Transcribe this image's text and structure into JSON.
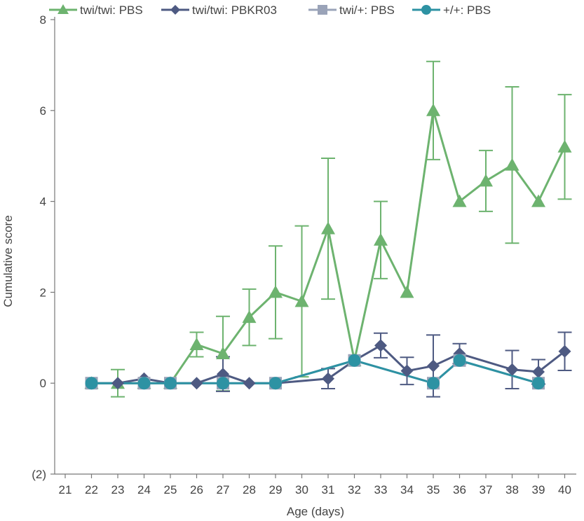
{
  "chart_data": {
    "type": "line",
    "xlabel": "Age (days)",
    "ylabel": "Cumulative score",
    "xlim": [
      21,
      40
    ],
    "ylim": [
      -2,
      8
    ],
    "x_ticks": [
      "21",
      "22",
      "23",
      "24",
      "25",
      "26",
      "27",
      "28",
      "29",
      "30",
      "31",
      "32",
      "33",
      "34",
      "35",
      "36",
      "37",
      "38",
      "39",
      "40"
    ],
    "y_ticks": [
      {
        "value": -2,
        "label": "(2)"
      },
      {
        "value": 0,
        "label": "0"
      },
      {
        "value": 2,
        "label": "2"
      },
      {
        "value": 4,
        "label": "4"
      },
      {
        "value": 6,
        "label": "6"
      },
      {
        "value": 8,
        "label": "8"
      }
    ],
    "grid": false,
    "legend_position": "top",
    "series": [
      {
        "name": "twi/twi: PBS",
        "color": "#6db36f",
        "marker": "triangle",
        "points": [
          {
            "x": 22,
            "y": 0
          },
          {
            "x": 23,
            "y": 0,
            "err": 0.3
          },
          {
            "x": 24,
            "y": 0
          },
          {
            "x": 25,
            "y": 0
          },
          {
            "x": 26,
            "y": 0.85,
            "err": 0.27
          },
          {
            "x": 27,
            "y": 0.65,
            "err": 0.82
          },
          {
            "x": 28,
            "y": 1.45,
            "err": 0.62
          },
          {
            "x": 29,
            "y": 2.0,
            "err": 1.02
          },
          {
            "x": 30,
            "y": 1.8,
            "err": 1.66
          },
          {
            "x": 31,
            "y": 3.4,
            "err": 1.55
          },
          {
            "x": 32,
            "y": 0.5
          },
          {
            "x": 33,
            "y": 3.15,
            "err": 0.85
          },
          {
            "x": 34,
            "y": 2.0
          },
          {
            "x": 35,
            "y": 6.0,
            "err": 1.08
          },
          {
            "x": 36,
            "y": 4.0
          },
          {
            "x": 37,
            "y": 4.45,
            "err": 0.67
          },
          {
            "x": 38,
            "y": 4.8,
            "err": 1.72
          },
          {
            "x": 39,
            "y": 4.0
          },
          {
            "x": 40,
            "y": 5.2,
            "err": 1.15
          }
        ]
      },
      {
        "name": "twi/twi: PBKR03",
        "color": "#4e5a82",
        "marker": "diamond",
        "points": [
          {
            "x": 22,
            "y": 0
          },
          {
            "x": 23,
            "y": 0
          },
          {
            "x": 24,
            "y": 0.1
          },
          {
            "x": 25,
            "y": 0
          },
          {
            "x": 26,
            "y": 0
          },
          {
            "x": 27,
            "y": 0.2,
            "err": 0.38
          },
          {
            "x": 28,
            "y": 0
          },
          {
            "x": 29,
            "y": 0
          },
          {
            "x": 31,
            "y": 0.1,
            "err": 0.22
          },
          {
            "x": 32,
            "y": 0.5
          },
          {
            "x": 33,
            "y": 0.83,
            "err": 0.27
          },
          {
            "x": 34,
            "y": 0.27,
            "err": 0.3
          },
          {
            "x": 35,
            "y": 0.38,
            "err": 0.68
          },
          {
            "x": 36,
            "y": 0.65,
            "err": 0.22
          },
          {
            "x": 38,
            "y": 0.3,
            "err": 0.42
          },
          {
            "x": 39,
            "y": 0.25,
            "err": 0.27
          },
          {
            "x": 40,
            "y": 0.7,
            "err": 0.42
          }
        ]
      },
      {
        "name": "twi/+: PBS",
        "color": "#9aa3b8",
        "marker": "square",
        "points": [
          {
            "x": 22,
            "y": 0
          },
          {
            "x": 24,
            "y": 0
          },
          {
            "x": 25,
            "y": 0
          },
          {
            "x": 27,
            "y": 0
          },
          {
            "x": 29,
            "y": 0
          },
          {
            "x": 32,
            "y": 0.5
          },
          {
            "x": 35,
            "y": 0
          },
          {
            "x": 36,
            "y": 0.5
          },
          {
            "x": 39,
            "y": 0
          }
        ]
      },
      {
        "name": "+/+: PBS",
        "color": "#2d92a3",
        "marker": "circle",
        "points": [
          {
            "x": 22,
            "y": 0
          },
          {
            "x": 24,
            "y": 0
          },
          {
            "x": 25,
            "y": 0
          },
          {
            "x": 27,
            "y": 0
          },
          {
            "x": 29,
            "y": 0
          },
          {
            "x": 32,
            "y": 0.5
          },
          {
            "x": 35,
            "y": 0
          },
          {
            "x": 36,
            "y": 0.5
          },
          {
            "x": 39,
            "y": 0
          }
        ]
      }
    ]
  }
}
